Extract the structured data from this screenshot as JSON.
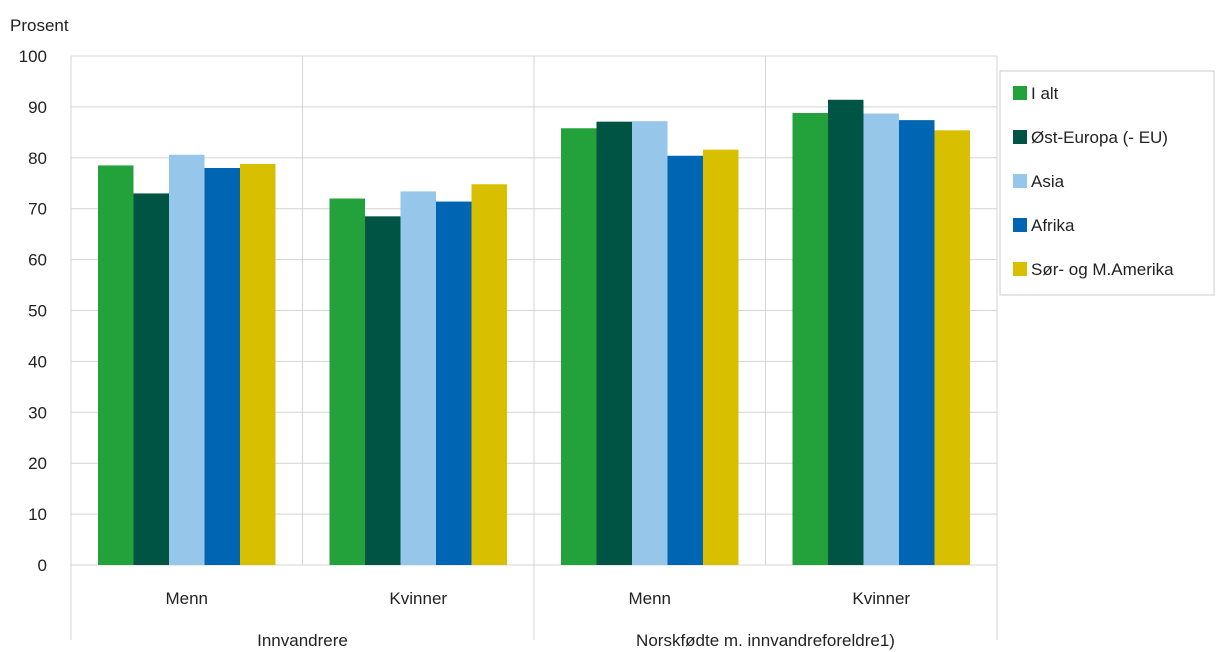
{
  "chart_data": {
    "type": "bar",
    "ylabel": "Prosent",
    "ylim": [
      0,
      100
    ],
    "yticks": [
      0,
      10,
      20,
      30,
      40,
      50,
      60,
      70,
      80,
      90,
      100
    ],
    "grid": true,
    "legend_position": "right",
    "groups": [
      {
        "label": "Innvandrere",
        "categories": [
          "Menn",
          "Kvinner"
        ]
      },
      {
        "label": "Norskfødte m. innvandreforeldre1)",
        "categories": [
          "Menn",
          "Kvinner"
        ]
      }
    ],
    "categories": [
      "Menn",
      "Kvinner",
      "Menn",
      "Kvinner"
    ],
    "series": [
      {
        "name": "I alt",
        "color": "#23a13a",
        "values": [
          78.5,
          72.0,
          85.8,
          88.8
        ]
      },
      {
        "name": "Øst-Europa (- EU)",
        "color": "#005444",
        "values": [
          73.0,
          68.5,
          87.1,
          91.4
        ]
      },
      {
        "name": "Asia",
        "color": "#96c7ea",
        "values": [
          80.6,
          73.4,
          87.2,
          88.7
        ]
      },
      {
        "name": "Afrika",
        "color": "#0066b3",
        "values": [
          78.0,
          71.4,
          80.4,
          87.4
        ]
      },
      {
        "name": "Sør- og M.Amerika",
        "color": "#d8bf00",
        "values": [
          78.8,
          74.8,
          81.6,
          85.4
        ]
      }
    ]
  }
}
